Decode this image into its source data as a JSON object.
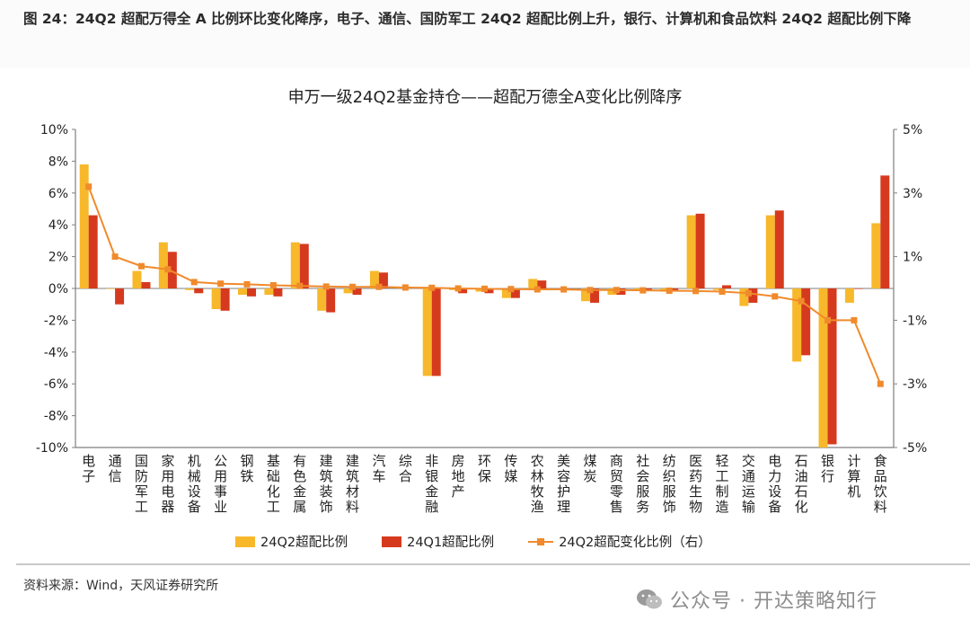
{
  "header": {
    "title": "图 24：24Q2 超配万得全 A 比例环比变化降序，电子、通信、国防军工 24Q2 超配比例上升，银行、计算机和食品饮料 24Q2 超配比例下降"
  },
  "footer": {
    "source": "资料来源：Wind，天风证券研究所",
    "watermark": "公众号 · 开达策略知行"
  },
  "colors": {
    "bar_24q2": "#F7B82B",
    "bar_24q1": "#D63A1E",
    "line_change": "#F08A2C",
    "axis": "#7f7f7f",
    "grid": "#d9d9d9"
  },
  "chart_data": {
    "type": "bar",
    "title": "申万一级24Q2基金持仓——超配万德全A变化比例降序",
    "categories": [
      "电子",
      "通信",
      "国防军工",
      "家用电器",
      "机械设备",
      "公用事业",
      "钢铁",
      "基础化工",
      "有色金属",
      "建筑装饰",
      "建筑材料",
      "汽车",
      "综合",
      "非银金融",
      "房地产",
      "环保",
      "传媒",
      "农林牧渔",
      "美容护理",
      "煤炭",
      "商贸零售",
      "社会服务",
      "纺织服饰",
      "医药生物",
      "轻工制造",
      "交通运输",
      "电力设备",
      "石油石化",
      "银行",
      "计算机",
      "食品饮料"
    ],
    "series": [
      {
        "name": "24Q2超配比例",
        "type": "bar",
        "axis": "left",
        "color": "#F7B82B",
        "values": [
          7.8,
          0.0,
          1.1,
          2.9,
          -0.1,
          -1.3,
          -0.4,
          -0.4,
          2.9,
          -1.4,
          -0.3,
          1.1,
          0.1,
          -5.5,
          -0.1,
          -0.2,
          -0.6,
          0.6,
          -0.1,
          -0.8,
          -0.4,
          -0.1,
          -0.2,
          4.6,
          -0.1,
          -1.1,
          4.6,
          -4.6,
          -10.0,
          -0.9,
          4.1
        ]
      },
      {
        "name": "24Q1超配比例",
        "type": "bar",
        "axis": "left",
        "color": "#D63A1E",
        "values": [
          4.6,
          -1.0,
          0.4,
          2.3,
          -0.3,
          -1.4,
          -0.5,
          -0.5,
          2.8,
          -1.5,
          -0.4,
          1.0,
          0.1,
          -5.5,
          -0.3,
          -0.3,
          -0.6,
          0.5,
          -0.1,
          -0.9,
          -0.4,
          -0.1,
          -0.2,
          4.7,
          0.2,
          -0.9,
          4.9,
          -4.2,
          -9.8,
          0.0,
          7.1
        ]
      },
      {
        "name": "24Q2超配变化比例（右）",
        "type": "line",
        "axis": "right",
        "color": "#F08A2C",
        "values": [
          3.2,
          1.0,
          0.7,
          0.6,
          0.2,
          0.15,
          0.13,
          0.1,
          0.08,
          0.06,
          0.05,
          0.05,
          0.03,
          0.02,
          0.0,
          -0.01,
          -0.02,
          -0.03,
          -0.03,
          -0.05,
          -0.05,
          -0.06,
          -0.07,
          -0.08,
          -0.1,
          -0.15,
          -0.25,
          -0.4,
          -1.0,
          -1.0,
          -3.0
        ]
      }
    ],
    "ylim_left": [
      -10,
      10
    ],
    "yticks_left": [
      "10%",
      "8%",
      "6%",
      "4%",
      "2%",
      "0%",
      "-2%",
      "-4%",
      "-6%",
      "-8%",
      "-10%"
    ],
    "ylim_right": [
      -5,
      5
    ],
    "yticks_right": [
      "5%",
      "3%",
      "1%",
      "-1%",
      "-3%",
      "-5%"
    ],
    "grid": false,
    "legend_position": "bottom"
  }
}
